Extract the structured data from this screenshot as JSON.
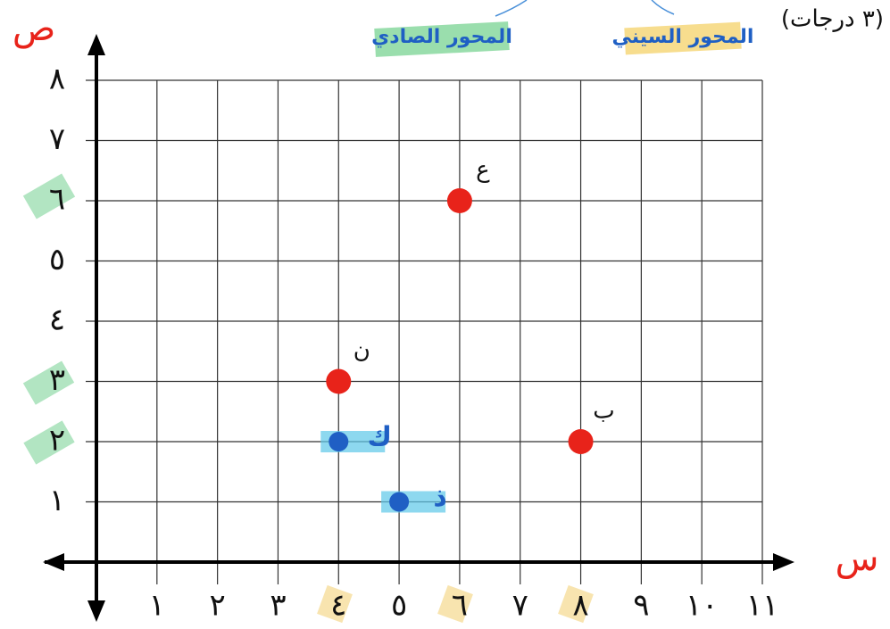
{
  "chart_data": {
    "type": "scatter",
    "title": "(٣ درجات)",
    "x_label": "س",
    "y_label": "ص",
    "annotations": [
      "المحور الصادي",
      "المحور السيني"
    ],
    "xlim": [
      0,
      11
    ],
    "ylim": [
      0,
      8
    ],
    "xticks": [
      {
        "value": 1,
        "label": "١"
      },
      {
        "value": 2,
        "label": "٢"
      },
      {
        "value": 3,
        "label": "٣"
      },
      {
        "value": 4,
        "label": "٤"
      },
      {
        "value": 5,
        "label": "٥"
      },
      {
        "value": 6,
        "label": "٦"
      },
      {
        "value": 7,
        "label": "٧"
      },
      {
        "value": 8,
        "label": "٨"
      },
      {
        "value": 9,
        "label": "٩"
      },
      {
        "value": 10,
        "label": "١٠"
      },
      {
        "value": 11,
        "label": "١١"
      }
    ],
    "yticks": [
      {
        "value": 1,
        "label": "١"
      },
      {
        "value": 2,
        "label": "٢"
      },
      {
        "value": 3,
        "label": "٣"
      },
      {
        "value": 4,
        "label": "٤"
      },
      {
        "value": 5,
        "label": "٥"
      },
      {
        "value": 6,
        "label": "٦"
      },
      {
        "value": 7,
        "label": "٧"
      },
      {
        "value": 8,
        "label": "٨"
      }
    ],
    "grid": true,
    "series": [
      {
        "color": "#e8231a",
        "x": [
          6,
          4,
          8
        ],
        "values": [
          6,
          3,
          2
        ],
        "labels": [
          "ع",
          "ن",
          "ب"
        ]
      },
      {
        "color": "#1f5fc4",
        "x": [
          4,
          5
        ],
        "values": [
          2,
          1
        ],
        "labels": [
          "ك",
          "ذ"
        ]
      }
    ]
  }
}
